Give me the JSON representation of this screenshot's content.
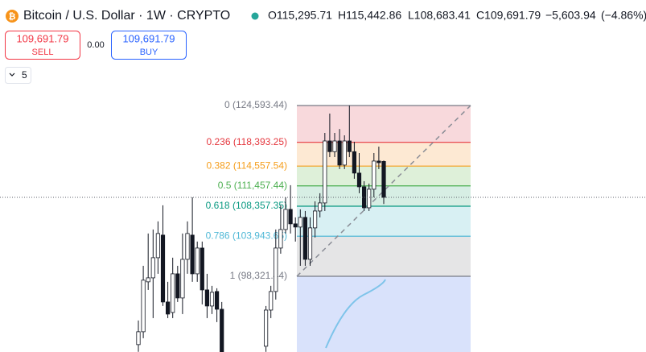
{
  "header": {
    "title": "Bitcoin / U.S. Dollar · 1W · CRYPTO",
    "open": {
      "value": 115295.71,
      "label": "O115,295.71"
    },
    "high": {
      "value": 115442.86,
      "label": "H115,442.86"
    },
    "low": {
      "value": 108683.41,
      "label": "L108,683.41"
    },
    "close": {
      "value": 109691.79,
      "label": "C109,691.79"
    },
    "change": {
      "value": -5603.94,
      "label": "−5,603.94"
    },
    "change_pct": {
      "value": -4.86,
      "label": "(−4.86%)"
    }
  },
  "trade": {
    "sell_price": "109,691.79",
    "sell_label": "SELL",
    "spread": "0.00",
    "buy_price": "109,691.79",
    "buy_label": "BUY",
    "quantity": "5"
  },
  "chart": {
    "log_scale": true,
    "levels": [
      {
        "label": "0 (124,593.44)",
        "price": 124593.44,
        "color": "#787b86",
        "fill": "#f8d9dc"
      },
      {
        "label": "0.236 (118,393.25)",
        "price": 118393.25,
        "color": "#e5383f",
        "fill": "#fde9d3"
      },
      {
        "label": "0.382 (114,557.54)",
        "price": 114557.54,
        "color": "#f59d1a",
        "fill": "#def0d9"
      },
      {
        "label": "0.5 (111,457.44)",
        "price": 111457.44,
        "color": "#4caf50",
        "fill": "#d7eee4"
      },
      {
        "label": "0.618 (108,357.35)",
        "price": 108357.35,
        "color": "#089981",
        "fill": "#d8f0f3"
      },
      {
        "label": "0.786 (103,943.65)",
        "price": 103943.65,
        "color": "#4fb8d6",
        "fill": "#e5e5e6"
      },
      {
        "label": "1 (98,321.44)",
        "price": 98321.44,
        "color": "#787b86",
        "fill": "#d9e2fb"
      }
    ],
    "candles": [
      [
        89430,
        92480,
        88540,
        91040
      ],
      [
        91040,
        99760,
        90230,
        97790
      ],
      [
        97570,
        104330,
        96480,
        98110
      ],
      [
        98110,
        104910,
        92780,
        100890
      ],
      [
        100890,
        106100,
        98660,
        104330
      ],
      [
        104100,
        108490,
        94350,
        94880
      ],
      [
        94880,
        97570,
        92780,
        93300
      ],
      [
        93510,
        100890,
        92780,
        98660
      ],
      [
        98660,
        99760,
        94880,
        95410
      ],
      [
        95410,
        104330,
        93300,
        100660
      ],
      [
        100660,
        106100,
        98660,
        104330
      ],
      [
        104100,
        109700,
        97570,
        98660
      ],
      [
        98660,
        103170,
        97570,
        102250
      ],
      [
        102250,
        103170,
        94560,
        96480
      ],
      [
        96480,
        98660,
        92780,
        94350
      ],
      [
        94350,
        97030,
        93300,
        96160
      ],
      [
        96270,
        96700,
        92270,
        93930
      ],
      [
        93930,
        94880,
        88540,
        88540
      ],
      null,
      null,
      null,
      null,
      null,
      null,
      null,
      null,
      [
        89230,
        94350,
        88540,
        93820
      ],
      [
        93820,
        97030,
        92780,
        96270
      ],
      [
        96270,
        104910,
        95200,
        102250
      ],
      [
        102250,
        108490,
        101450,
        104910
      ],
      [
        104910,
        109700,
        104330,
        107880
      ],
      [
        107880,
        111560,
        104330,
        105740
      ],
      [
        105740,
        106690,
        103170,
        105270
      ],
      [
        105270,
        107880,
        99760,
        106690
      ],
      [
        106690,
        107640,
        99760,
        100660
      ],
      [
        100660,
        106690,
        99760,
        105150
      ],
      [
        105150,
        109090,
        103750,
        107640
      ],
      [
        107640,
        110320,
        106690,
        108850
      ],
      [
        108850,
        119950,
        107640,
        118620
      ],
      [
        118620,
        123210,
        115990,
        116870
      ],
      [
        116870,
        119950,
        115990,
        118620
      ],
      [
        118620,
        120600,
        114080,
        114720
      ],
      [
        114720,
        119550,
        114080,
        118620
      ],
      [
        118620,
        124593,
        115990,
        116870
      ],
      [
        116870,
        118490,
        112560,
        113450
      ],
      [
        113450,
        116650,
        110320,
        111310
      ],
      [
        111310,
        112180,
        107640,
        108120
      ],
      [
        108120,
        111810,
        107640,
        110940
      ],
      [
        110940,
        116650,
        109700,
        115360
      ],
      [
        115360,
        117690,
        114080,
        115100
      ],
      [
        115295.71,
        115442.86,
        108683.41,
        109691.79
      ]
    ]
  }
}
